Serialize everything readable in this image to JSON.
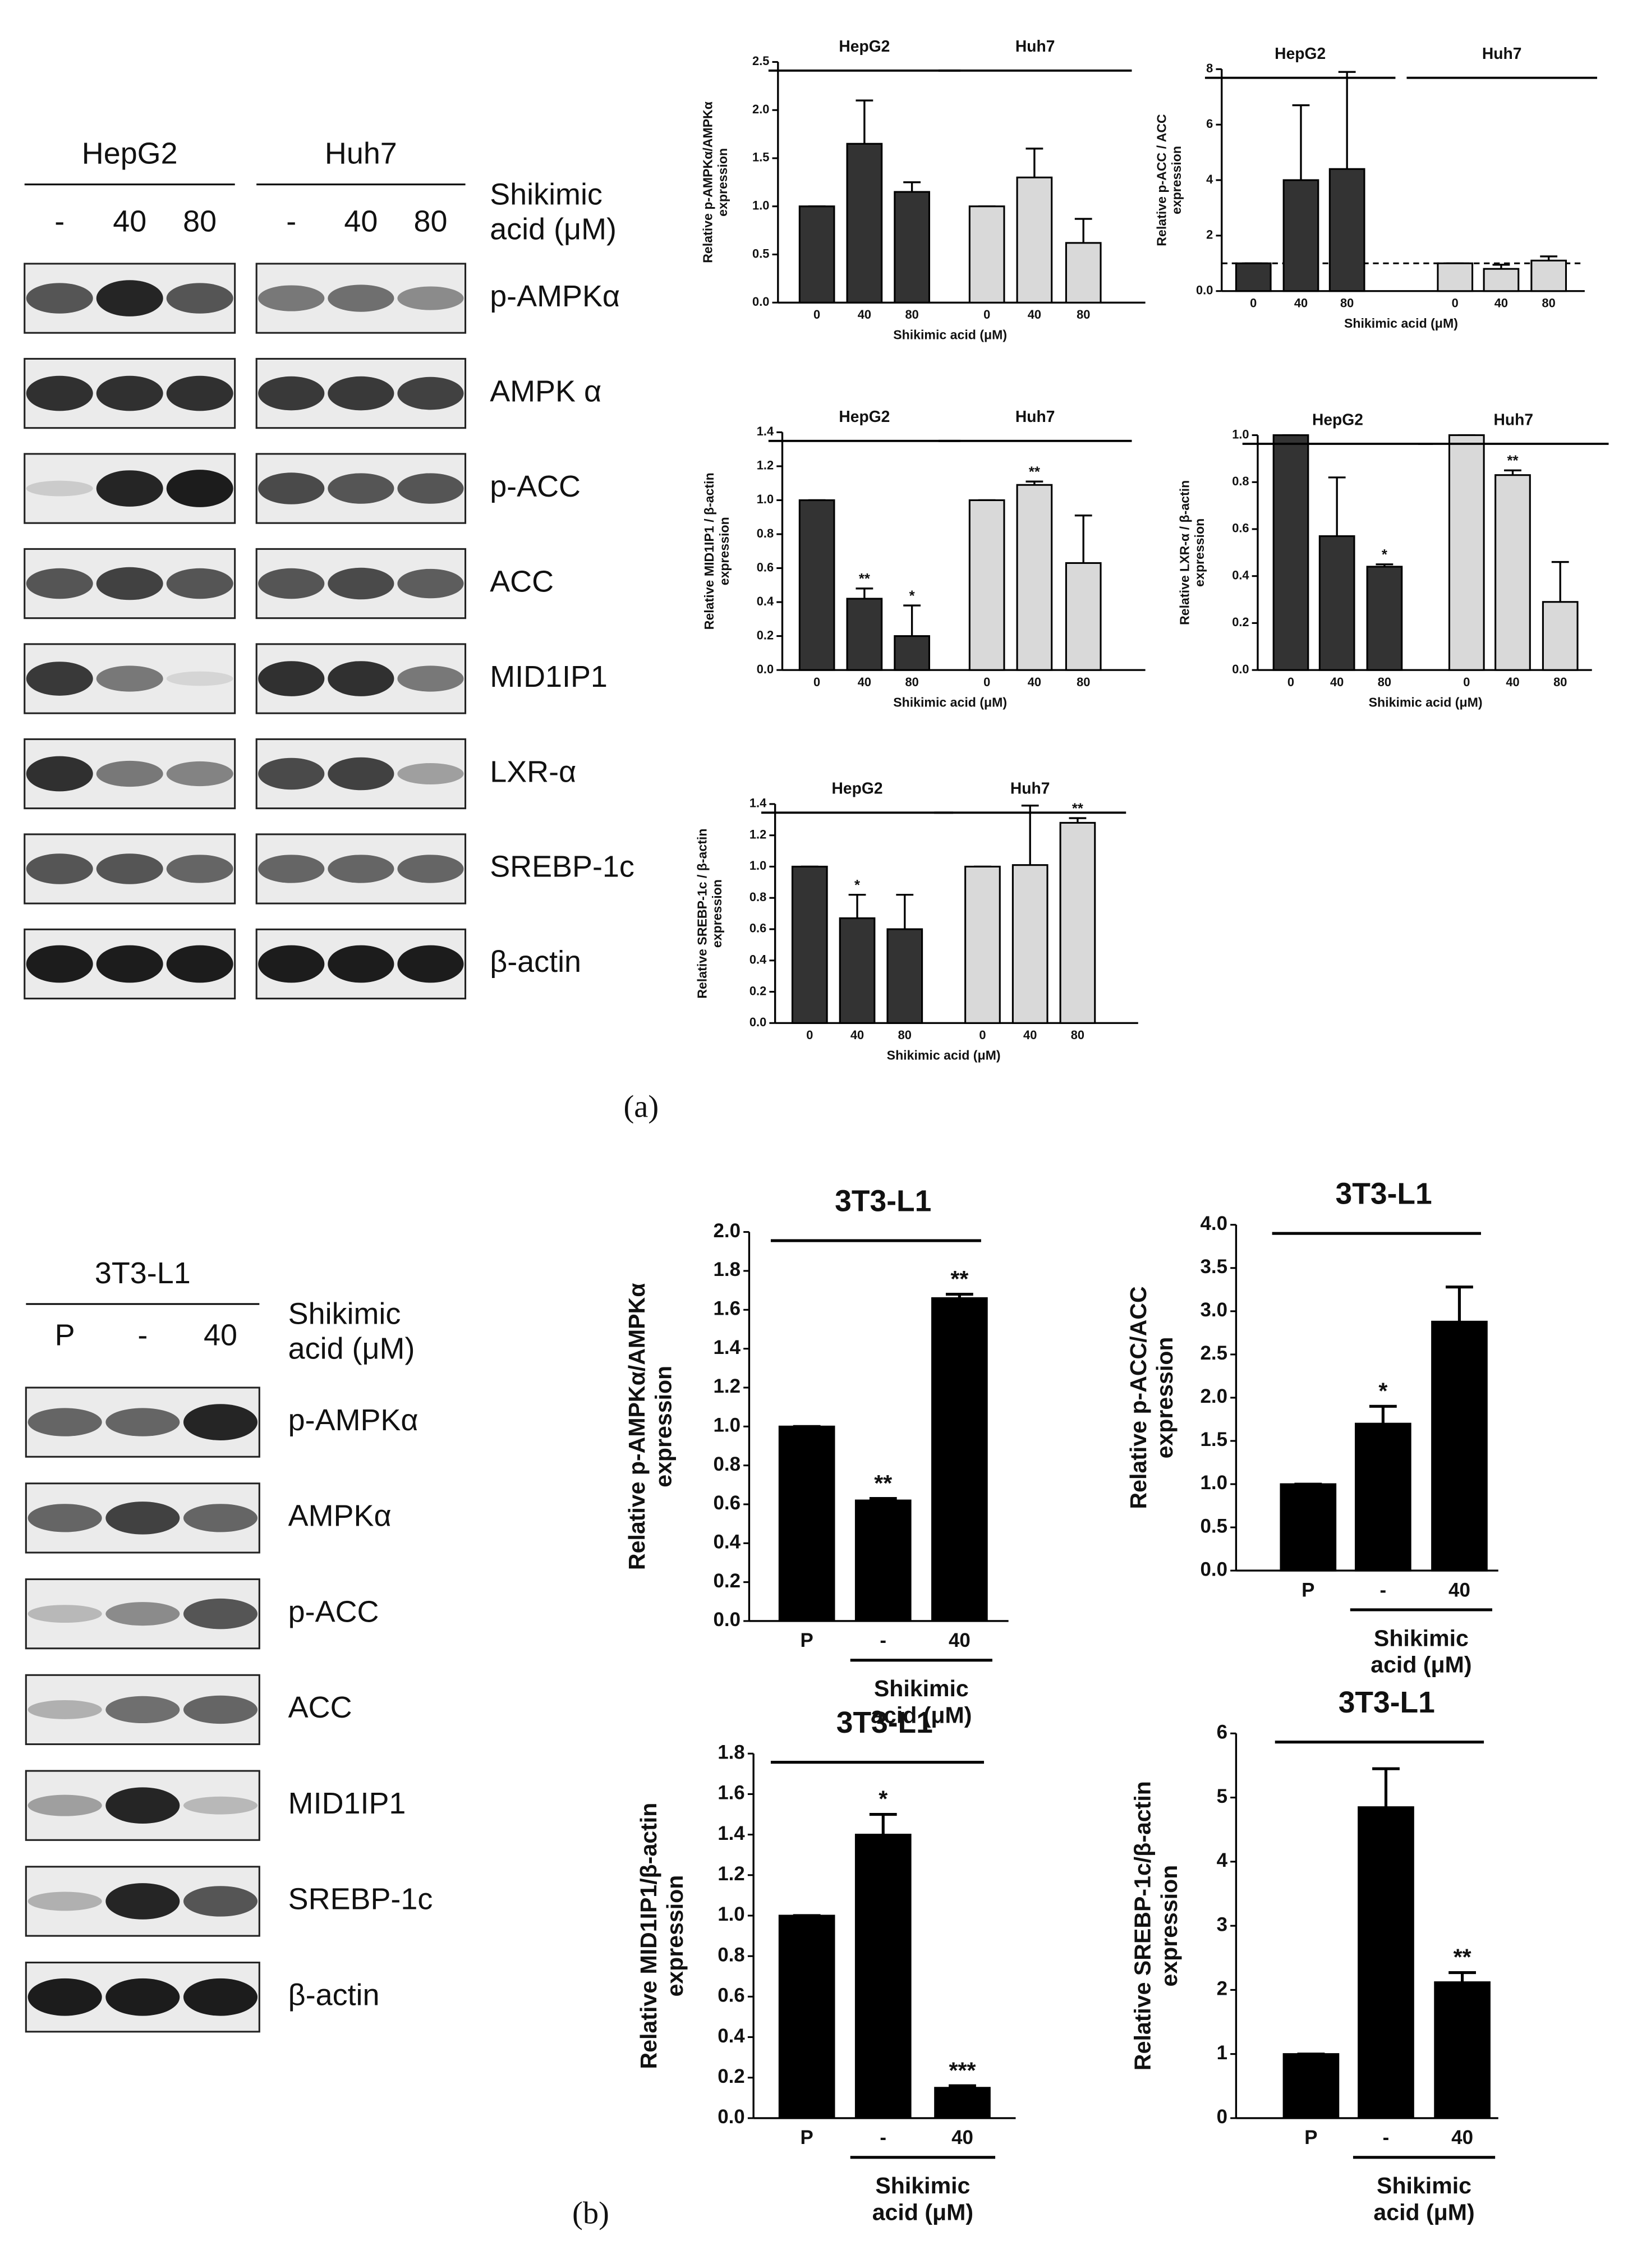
{
  "panel_labels": [
    "(a)",
    "(b)"
  ],
  "blots": [
    {
      "cell_lines": [
        "HepG2",
        "Huh7"
      ],
      "lanes": [
        [
          "-",
          "40",
          "80"
        ],
        [
          "-",
          "40",
          "80"
        ]
      ],
      "treatment": "Shikimic acid (μM)",
      "proteins": [
        "p-AMPKα",
        "AMPK α",
        "p-ACC",
        "ACC",
        "MID1IP1",
        "LXR-α",
        "SREBP-1c",
        "β-actin"
      ]
    },
    {
      "cell_lines": [
        "3T3-L1"
      ],
      "lanes": [
        [
          "P",
          "-",
          "40"
        ]
      ],
      "treatment": "Shikimic acid (μM)",
      "proteins": [
        "p-AMPKα",
        "AMPKα",
        "p-ACC",
        "ACC",
        "MID1IP1",
        "SREBP-1c",
        "β-actin"
      ]
    }
  ],
  "chart_data": [
    {
      "type": "bar",
      "ylabel": "Relative p-AMPKα/AMPKα expression",
      "xlabel": "Shikimic acid (μM)",
      "categories": [
        "0",
        "40",
        "80"
      ],
      "ylim": [
        0,
        2.5
      ],
      "yticks": [
        {
          "value": 0,
          "label": "0.0"
        },
        0.5,
        {
          "value": 1,
          "label": "1.0"
        },
        1.5,
        {
          "value": 2,
          "label": "2.0"
        },
        2.5
      ],
      "series": [
        {
          "name": "HepG2",
          "color": "#333333",
          "values": [
            1,
            1.65,
            1.15
          ],
          "errors": [
            0,
            0.45,
            0.1
          ],
          "annotations": [
            null,
            null,
            null
          ]
        },
        {
          "name": "Huh7",
          "color": "#d9d9d9",
          "values": [
            1,
            1.3,
            0.62
          ],
          "errors": [
            0,
            0.3,
            0.25
          ],
          "annotations": [
            null,
            null,
            null
          ]
        }
      ]
    },
    {
      "type": "bar",
      "ylabel": "Relative p-ACC / ACC expression",
      "xlabel": "Shikimic acid (μM)",
      "categories": [
        "0",
        "40",
        "80"
      ],
      "ylim": [
        0,
        8
      ],
      "reference_line": 1,
      "yticks": [
        {
          "value": 0,
          "label": "0.0"
        },
        2,
        4,
        6,
        8
      ],
      "series": [
        {
          "name": "HepG2",
          "color": "#333333",
          "values": [
            1,
            4.0,
            4.4
          ],
          "errors": [
            0,
            2.7,
            3.5
          ],
          "annotations": [
            null,
            null,
            null
          ]
        },
        {
          "name": "Huh7",
          "color": "#d9d9d9",
          "values": [
            1,
            0.8,
            1.1
          ],
          "errors": [
            0,
            0.15,
            0.15
          ],
          "annotations": [
            null,
            null,
            null
          ]
        }
      ]
    },
    {
      "type": "bar",
      "ylabel": "Relative MID1IP1 / β-actin expression",
      "xlabel": "Shikimic acid (μM)",
      "categories": [
        "0",
        "40",
        "80"
      ],
      "ylim": [
        0,
        1.4
      ],
      "yticks": [
        {
          "value": 0,
          "label": "0.0"
        },
        0.2,
        0.4,
        0.6,
        0.8,
        {
          "value": 1,
          "label": "1.0"
        },
        1.2,
        1.4
      ],
      "series": [
        {
          "name": "HepG2",
          "color": "#333333",
          "values": [
            1,
            0.42,
            0.2
          ],
          "errors": [
            0,
            0.06,
            0.18
          ],
          "annotations": [
            null,
            "**",
            "*"
          ]
        },
        {
          "name": "Huh7",
          "color": "#d9d9d9",
          "values": [
            1,
            1.09,
            0.63
          ],
          "errors": [
            0,
            0.02,
            0.28
          ],
          "annotations": [
            null,
            "**",
            null
          ]
        }
      ]
    },
    {
      "type": "bar",
      "ylabel": "Relative LXR-α / β-actin expression",
      "xlabel": "Shikimic acid (μM)",
      "categories": [
        "0",
        "40",
        "80"
      ],
      "ylim": [
        0,
        1
      ],
      "yticks": [
        {
          "value": 0,
          "label": "0.0"
        },
        0.2,
        0.4,
        0.6,
        0.8,
        {
          "value": 1,
          "label": "1.0"
        }
      ],
      "series": [
        {
          "name": "HepG2",
          "color": "#333333",
          "values": [
            1,
            0.57,
            0.44
          ],
          "errors": [
            0,
            0.25,
            0.01
          ],
          "annotations": [
            null,
            null,
            "*"
          ]
        },
        {
          "name": "Huh7",
          "color": "#d9d9d9",
          "values": [
            1,
            0.83,
            0.29
          ],
          "errors": [
            0,
            0.02,
            0.17
          ],
          "annotations": [
            null,
            "**",
            null
          ]
        }
      ]
    },
    {
      "type": "bar",
      "ylabel": "Relative SREBP-1c / β-actin expression",
      "xlabel": "Shikimic acid (μM)",
      "categories": [
        "0",
        "40",
        "80"
      ],
      "ylim": [
        0,
        1.4
      ],
      "yticks": [
        {
          "value": 0,
          "label": "0.0"
        },
        0.2,
        0.4,
        0.6,
        0.8,
        {
          "value": 1,
          "label": "1.0"
        },
        1.2,
        1.4
      ],
      "series": [
        {
          "name": "HepG2",
          "color": "#333333",
          "values": [
            1,
            0.67,
            0.6
          ],
          "errors": [
            0,
            0.15,
            0.22
          ],
          "annotations": [
            null,
            "*",
            null
          ]
        },
        {
          "name": "Huh7",
          "color": "#d9d9d9",
          "values": [
            1,
            1.01,
            1.28
          ],
          "errors": [
            0,
            0.38,
            0.03
          ],
          "annotations": [
            null,
            null,
            "**"
          ]
        }
      ]
    },
    {
      "type": "bar",
      "title": "3T3-L1",
      "ylabel": "Relative p-AMPKα/AMPKα expression",
      "xlabel": "Shikimic acid (μM)",
      "categories": [
        "P",
        "-",
        "40"
      ],
      "ylim": [
        0,
        2
      ],
      "yticks": [
        {
          "value": 0,
          "label": "0.0"
        },
        0.2,
        0.4,
        0.6,
        0.8,
        {
          "value": 1,
          "label": "1.0"
        },
        1.2,
        1.4,
        1.6,
        1.8,
        {
          "value": 2,
          "label": "2.0"
        }
      ],
      "series": [
        {
          "color": "#000000",
          "values": [
            1,
            0.62,
            1.66
          ],
          "errors": [
            0,
            0.01,
            0.02
          ],
          "annotations": [
            null,
            "**",
            "**"
          ]
        }
      ]
    },
    {
      "type": "bar",
      "title": "3T3-L1",
      "ylabel": "Relative p-ACC/ACC expression",
      "xlabel": "Shikimic acid (μM)",
      "categories": [
        "P",
        "-",
        "40"
      ],
      "ylim": [
        0,
        4
      ],
      "yticks": [
        {
          "value": 0,
          "label": "0.0"
        },
        0.5,
        {
          "value": 1,
          "label": "1.0"
        },
        1.5,
        {
          "value": 2,
          "label": "2.0"
        },
        2.5,
        {
          "value": 3,
          "label": "3.0"
        },
        3.5,
        {
          "value": 4,
          "label": "4.0"
        }
      ],
      "series": [
        {
          "color": "#000000",
          "values": [
            1,
            1.7,
            2.88
          ],
          "errors": [
            0,
            0.2,
            0.4
          ],
          "annotations": [
            null,
            "*",
            null
          ]
        }
      ]
    },
    {
      "type": "bar",
      "title": "3T3-L1",
      "ylabel": "Relative MID1IP1/β-actin expression",
      "xlabel": "Shikimic acid (μM)",
      "categories": [
        "P",
        "-",
        "40"
      ],
      "ylim": [
        0,
        1.8
      ],
      "yticks": [
        {
          "value": 0,
          "label": "0.0"
        },
        0.2,
        0.4,
        0.6,
        0.8,
        {
          "value": 1,
          "label": "1.0"
        },
        1.2,
        1.4,
        1.6,
        1.8
      ],
      "series": [
        {
          "color": "#000000",
          "values": [
            1,
            1.4,
            0.15
          ],
          "errors": [
            0,
            0.1,
            0.01
          ],
          "annotations": [
            null,
            "*",
            "***"
          ]
        }
      ]
    },
    {
      "type": "bar",
      "title": "3T3-L1",
      "ylabel": "Relative SREBP-1c/β-actin expression",
      "xlabel": "Shikimic acid (μM)",
      "categories": [
        "P",
        "-",
        "40"
      ],
      "ylim": [
        0,
        6
      ],
      "yticks": [
        0,
        1,
        2,
        3,
        4,
        5,
        6
      ],
      "series": [
        {
          "color": "#000000",
          "values": [
            1,
            4.85,
            2.12
          ],
          "errors": [
            0,
            0.6,
            0.15
          ],
          "annotations": [
            null,
            null,
            "**"
          ]
        }
      ]
    }
  ]
}
